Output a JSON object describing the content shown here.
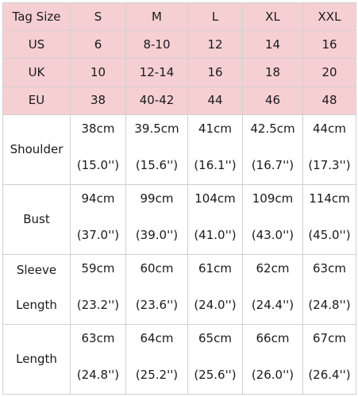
{
  "header": {
    "corner": "Tag Size",
    "sizes": [
      "S",
      "M",
      "L",
      "XL",
      "XXL"
    ]
  },
  "regions": [
    {
      "label": "US",
      "values": [
        "6",
        "8-10",
        "12",
        "14",
        "16"
      ]
    },
    {
      "label": "UK",
      "values": [
        "10",
        "12-14",
        "16",
        "18",
        "20"
      ]
    },
    {
      "label": "EU",
      "values": [
        "38",
        "40-42",
        "44",
        "46",
        "48"
      ]
    }
  ],
  "measurements": [
    {
      "label": "Shoulder",
      "cm": [
        "38cm",
        "39.5cm",
        "41cm",
        "42.5cm",
        "44cm"
      ],
      "inch": [
        "(15.0'')",
        "(15.6'')",
        "(16.1'')",
        "(16.7'')",
        "(17.3'')"
      ]
    },
    {
      "label": "Bust",
      "cm": [
        "94cm",
        "99cm",
        "104cm",
        "109cm",
        "114cm"
      ],
      "inch": [
        "(37.0'')",
        "(39.0'')",
        "(41.0'')",
        "(43.0'')",
        "(45.0'')"
      ]
    },
    {
      "label_top": "Sleeve",
      "label_bottom": "Length",
      "cm": [
        "59cm",
        "60cm",
        "61cm",
        "62cm",
        "63cm"
      ],
      "inch": [
        "(23.2'')",
        "(23.6'')",
        "(24.0'')",
        "(24.4'')",
        "(24.8'')"
      ]
    },
    {
      "label": "Length",
      "cm": [
        "63cm",
        "64cm",
        "65cm",
        "66cm",
        "67cm"
      ],
      "inch": [
        "(24.8'')",
        "(25.2'')",
        "(25.6'')",
        "(26.0'')",
        "(26.4'')"
      ]
    }
  ],
  "colors": {
    "header_bg": "#f6cfd3",
    "grid": "#d0d0d0"
  }
}
